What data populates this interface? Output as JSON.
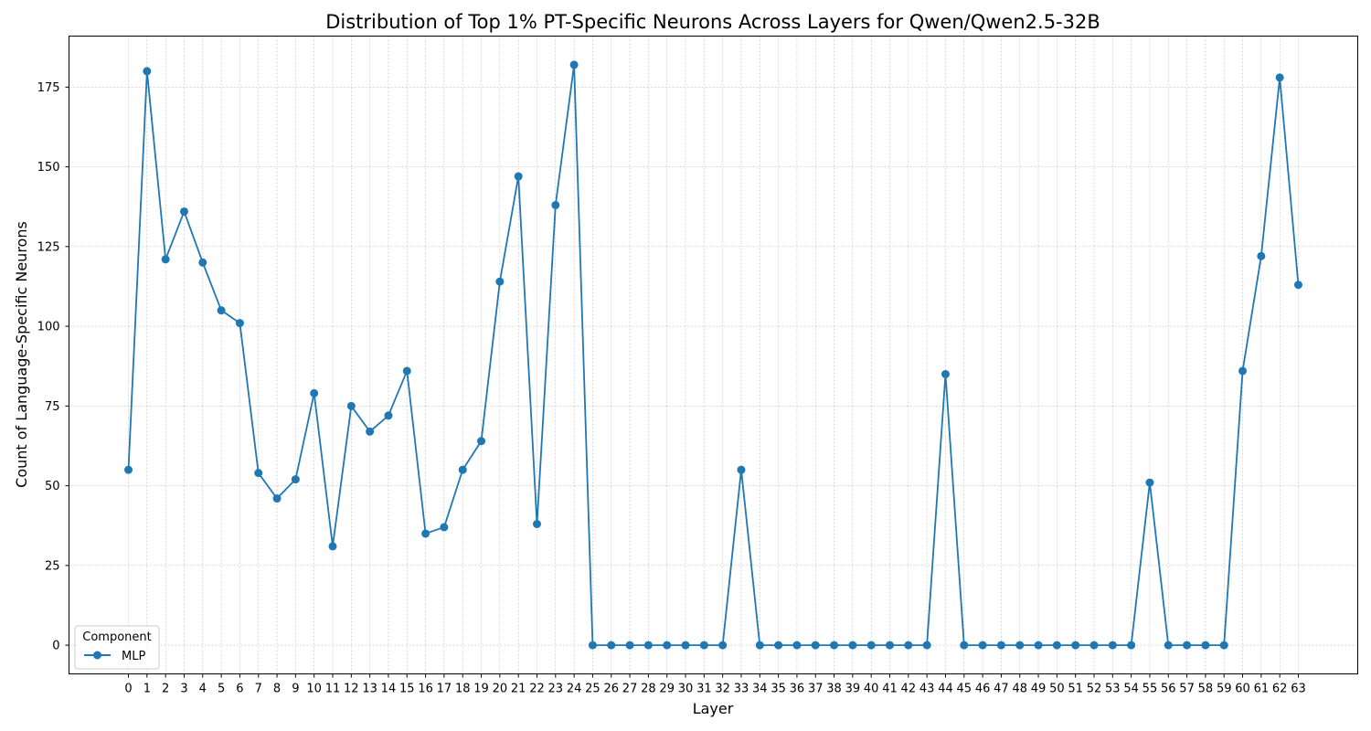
{
  "chart_data": {
    "type": "line",
    "title": "Distribution of Top 1% PT-Specific Neurons Across Layers for Qwen/Qwen2.5-32B",
    "xlabel": "Layer",
    "ylabel": "Count of Language-Specific Neurons",
    "x": [
      0,
      1,
      2,
      3,
      4,
      5,
      6,
      7,
      8,
      9,
      10,
      11,
      12,
      13,
      14,
      15,
      16,
      17,
      18,
      19,
      20,
      21,
      22,
      23,
      24,
      25,
      26,
      27,
      28,
      29,
      30,
      31,
      32,
      33,
      34,
      35,
      36,
      37,
      38,
      39,
      40,
      41,
      42,
      43,
      44,
      45,
      46,
      47,
      48,
      49,
      50,
      51,
      52,
      53,
      54,
      55,
      56,
      57,
      58,
      59,
      60,
      61,
      62,
      63
    ],
    "xlim": [
      -3.2,
      66.2
    ],
    "ylim": [
      -9,
      191
    ],
    "yticks": [
      0,
      25,
      50,
      75,
      100,
      125,
      150,
      175
    ],
    "grid": true,
    "series": [
      {
        "name": "MLP",
        "color": "#1f77b4",
        "marker": "circle",
        "values": [
          55,
          180,
          121,
          136,
          120,
          105,
          101,
          54,
          46,
          52,
          79,
          31,
          75,
          67,
          72,
          86,
          35,
          37,
          55,
          64,
          114,
          147,
          38,
          138,
          182,
          0,
          0,
          0,
          0,
          0,
          0,
          0,
          0,
          55,
          0,
          0,
          0,
          0,
          0,
          0,
          0,
          0,
          0,
          0,
          85,
          0,
          0,
          0,
          0,
          0,
          0,
          0,
          0,
          0,
          0,
          51,
          0,
          0,
          0,
          0,
          86,
          122,
          178,
          113
        ]
      }
    ],
    "legend": {
      "title": "Component",
      "placement": "lower-left"
    }
  }
}
